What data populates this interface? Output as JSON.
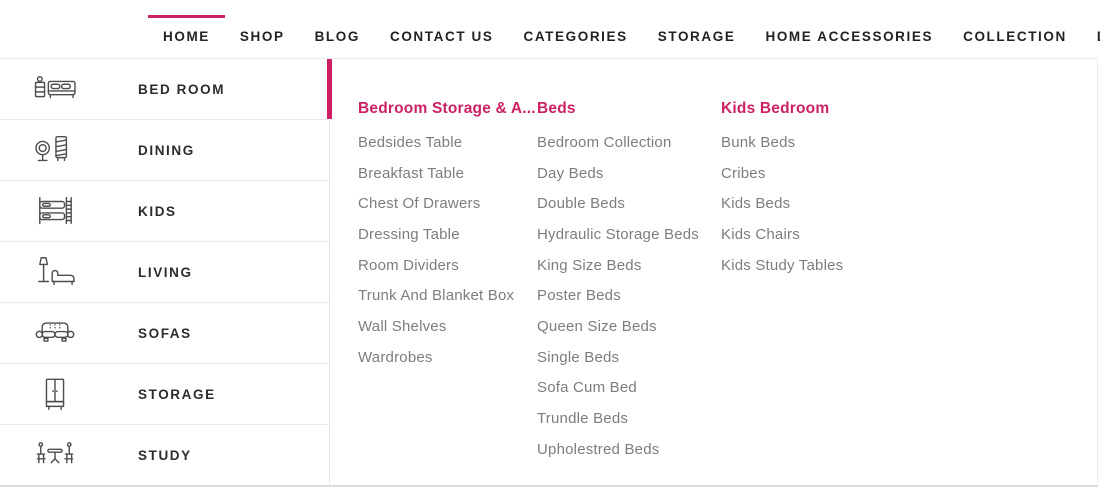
{
  "colors": {
    "accent": "#cd2166"
  },
  "nav": {
    "items": [
      {
        "label": "HOME",
        "active": true
      },
      {
        "label": "SHOP"
      },
      {
        "label": "BLOG"
      },
      {
        "label": "CONTACT US"
      },
      {
        "label": "CATEGORIES"
      },
      {
        "label": "STORAGE"
      },
      {
        "label": "HOME ACCESSORIES"
      },
      {
        "label": "COLLECTION"
      },
      {
        "label": "DECOR"
      }
    ]
  },
  "sidebar": {
    "items": [
      {
        "label": "BED ROOM",
        "icon": "bedside-table-and-bed-icon",
        "active": true
      },
      {
        "label": "DINING",
        "icon": "mirror-and-cabinet-icon"
      },
      {
        "label": "KIDS",
        "icon": "bunk-bed-icon"
      },
      {
        "label": "LIVING",
        "icon": "floor-lamp-and-chaise-icon"
      },
      {
        "label": "SOFAS",
        "icon": "sofa-icon"
      },
      {
        "label": "STORAGE",
        "icon": "wardrobe-icon"
      },
      {
        "label": "STUDY",
        "icon": "table-and-chairs-icon"
      }
    ]
  },
  "panel": {
    "columns": [
      {
        "title": "Bedroom Storage & A...",
        "items": [
          "Bedsides Table",
          "Breakfast Table",
          "Chest Of Drawers",
          "Dressing Table",
          "Room Dividers",
          "Trunk And Blanket Box",
          "Wall Shelves",
          "Wardrobes"
        ]
      },
      {
        "title": "Beds",
        "items": [
          "Bedroom Collection",
          "Day Beds",
          "Double Beds",
          "Hydraulic Storage Beds",
          "King Size Beds",
          "Poster Beds",
          "Queen Size Beds",
          "Single Beds",
          "Sofa Cum Bed",
          "Trundle Beds",
          "Upholestred Beds"
        ]
      },
      {
        "title": "Kids Bedroom",
        "items": [
          "Bunk Beds",
          "Cribes",
          "Kids Beds",
          "Kids Chairs",
          "Kids Study Tables"
        ]
      }
    ]
  }
}
